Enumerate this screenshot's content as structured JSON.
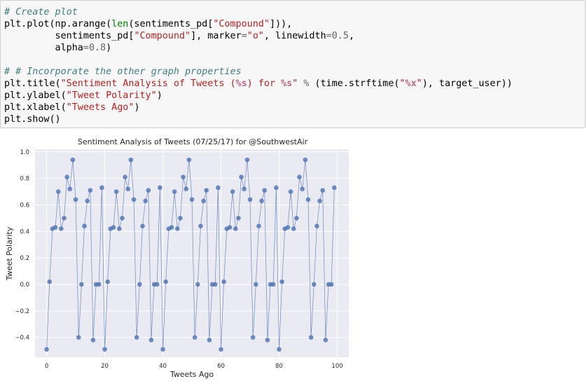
{
  "code_cell": {
    "lines": [
      [
        {
          "t": "# Create plot",
          "c": "comment"
        }
      ],
      [
        {
          "t": "plt.plot(np.arange(",
          "c": ""
        },
        {
          "t": "len",
          "c": "builtin"
        },
        {
          "t": "(sentiments_pd[",
          "c": ""
        },
        {
          "t": "\"Compound\"",
          "c": "string"
        },
        {
          "t": "])),",
          "c": ""
        }
      ],
      [
        {
          "t": "         sentiments_pd[",
          "c": ""
        },
        {
          "t": "\"Compound\"",
          "c": "string"
        },
        {
          "t": "], marker",
          "c": ""
        },
        {
          "t": "=",
          "c": "op"
        },
        {
          "t": "\"o\"",
          "c": "string"
        },
        {
          "t": ", linewidth",
          "c": ""
        },
        {
          "t": "=",
          "c": "op"
        },
        {
          "t": "0.5",
          "c": "op"
        },
        {
          "t": ",",
          "c": ""
        }
      ],
      [
        {
          "t": "         alpha",
          "c": ""
        },
        {
          "t": "=",
          "c": "op"
        },
        {
          "t": "0.8",
          "c": "op"
        },
        {
          "t": ")",
          "c": ""
        }
      ],
      [
        {
          "t": "",
          "c": ""
        }
      ],
      [
        {
          "t": "# # Incorporate the other graph properties",
          "c": "comment"
        }
      ],
      [
        {
          "t": "plt.title(",
          "c": ""
        },
        {
          "t": "\"Sentiment Analysis of Tweets (",
          "c": "string"
        },
        {
          "t": "%s",
          "c": "fmt"
        },
        {
          "t": ") for ",
          "c": "string"
        },
        {
          "t": "%s",
          "c": "fmt"
        },
        {
          "t": "\"",
          "c": "string"
        },
        {
          "t": " % ",
          "c": "op"
        },
        {
          "t": "(time.strftime(",
          "c": ""
        },
        {
          "t": "\"",
          "c": "string"
        },
        {
          "t": "%x",
          "c": "fmt"
        },
        {
          "t": "\"",
          "c": "string"
        },
        {
          "t": "), target_user))",
          "c": ""
        }
      ],
      [
        {
          "t": "plt.ylabel(",
          "c": ""
        },
        {
          "t": "\"Tweet Polarity\"",
          "c": "string"
        },
        {
          "t": ")",
          "c": ""
        }
      ],
      [
        {
          "t": "plt.xlabel(",
          "c": ""
        },
        {
          "t": "\"Tweets Ago\"",
          "c": "string"
        },
        {
          "t": ")",
          "c": ""
        }
      ],
      [
        {
          "t": "plt.show()",
          "c": ""
        }
      ]
    ]
  },
  "chart_data": {
    "type": "line",
    "title": "Sentiment Analysis of Tweets (07/25/17) for @SouthwestAir",
    "xlabel": "Tweets Ago",
    "ylabel": "Tweet Polarity",
    "xlim": [
      -4,
      104
    ],
    "ylim": [
      -0.55,
      1.02
    ],
    "xticks": [
      0,
      20,
      40,
      60,
      80,
      100
    ],
    "yticks": [
      -0.4,
      -0.2,
      0.0,
      0.2,
      0.4,
      0.6,
      0.8,
      1.0
    ],
    "xtick_labels": [
      "0",
      "20",
      "40",
      "60",
      "80",
      "100"
    ],
    "ytick_labels": [
      "−0.4",
      "−0.2",
      "0.0",
      "0.2",
      "0.4",
      "0.6",
      "0.8",
      "1.0"
    ],
    "grid": true,
    "style": "seaborn",
    "colors": {
      "line": "#4c72b0",
      "background": "#eaeaf2",
      "grid": "#ffffff"
    },
    "marker": "o",
    "linewidth": 0.5,
    "alpha": 0.8,
    "series": [
      {
        "x": [
          0,
          1,
          2,
          3,
          4,
          5,
          6,
          7,
          8,
          9,
          10,
          11,
          12,
          13,
          14,
          15,
          16,
          17,
          18,
          19,
          20,
          21,
          22,
          23,
          24,
          25,
          26,
          27,
          28,
          29,
          30,
          31,
          32,
          33,
          34,
          35,
          36,
          37,
          38,
          39,
          40,
          41,
          42,
          43,
          44,
          45,
          46,
          47,
          48,
          49,
          50,
          51,
          52,
          53,
          54,
          55,
          56,
          57,
          58,
          59,
          60,
          61,
          62,
          63,
          64,
          65,
          66,
          67,
          68,
          69,
          70,
          71,
          72,
          73,
          74,
          75,
          76,
          77,
          78,
          79,
          80,
          81,
          82,
          83,
          84,
          85,
          86,
          87,
          88,
          89,
          90,
          91,
          92,
          93,
          94,
          95,
          96,
          97,
          98,
          99
        ],
        "y": [
          -0.49,
          0.02,
          0.42,
          0.43,
          0.7,
          0.42,
          0.5,
          0.81,
          0.72,
          0.94,
          0.64,
          -0.4,
          0.0,
          0.44,
          0.63,
          0.71,
          -0.42,
          0.0,
          0.0,
          0.73,
          -0.49,
          0.02,
          0.42,
          0.43,
          0.7,
          0.42,
          0.5,
          0.81,
          0.72,
          0.94,
          0.64,
          -0.4,
          0.0,
          0.44,
          0.63,
          0.71,
          -0.42,
          0.0,
          0.0,
          0.73,
          -0.49,
          0.02,
          0.42,
          0.43,
          0.7,
          0.42,
          0.5,
          0.81,
          0.72,
          0.94,
          0.64,
          -0.4,
          0.0,
          0.44,
          0.63,
          0.71,
          -0.42,
          0.0,
          0.0,
          0.73,
          -0.49,
          0.02,
          0.42,
          0.43,
          0.7,
          0.42,
          0.5,
          0.81,
          0.72,
          0.94,
          0.64,
          -0.4,
          0.0,
          0.44,
          0.63,
          0.71,
          -0.42,
          0.0,
          0.0,
          0.73,
          -0.49,
          0.02,
          0.42,
          0.43,
          0.7,
          0.42,
          0.5,
          0.81,
          0.72,
          0.94,
          0.64,
          -0.4,
          0.0,
          0.44,
          0.63,
          0.71,
          -0.42,
          0.0,
          0.0,
          0.73
        ]
      }
    ]
  }
}
